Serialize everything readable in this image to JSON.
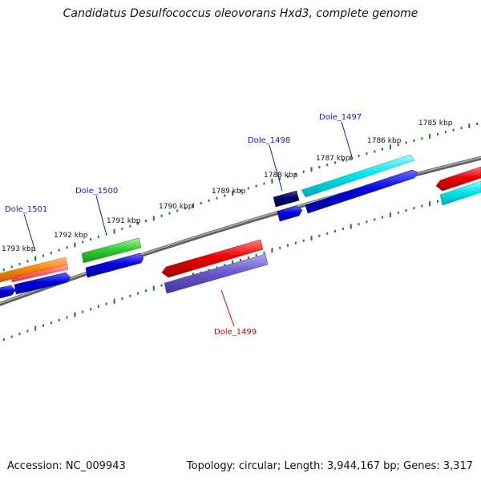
{
  "title": "Candidatus Desulfococcus oleovorans Hxd3, complete genome",
  "footer": {
    "accession": "Accession: NC_009943",
    "summary": "Topology: circular; Length: 3,944,167 bp; Genes: 3,317"
  },
  "colors": {
    "backbone": "#808080",
    "tick": "#1e7a1e",
    "label_blue": "#1a1aaa",
    "label_red": "#d40000"
  },
  "kbp_labels": [
    "1785 kbp",
    "1786 kbp",
    "1787 kbp",
    "1788 kbp",
    "1789 kbp",
    "1790 kbp",
    "1791 kbp",
    "1792 kbp",
    "1793 kbp"
  ],
  "gene_labels": [
    {
      "text": "Dole_1497",
      "color": "#1a1aaa"
    },
    {
      "text": "Dole_1498",
      "color": "#1a1aaa"
    },
    {
      "text": "Dole_1500",
      "color": "#1a1aaa"
    },
    {
      "text": "Dole_1501",
      "color": "#1a1aaa"
    },
    {
      "text": "Dole_1499",
      "color": "#d40000"
    }
  ],
  "features": [
    {
      "color": "#00e5ee",
      "name": "cyan-feature-right"
    },
    {
      "color": "#0000dd",
      "name": "blue-feature-right"
    },
    {
      "color": "#000066",
      "name": "navy-feature"
    },
    {
      "color": "#ee0000",
      "name": "red-feature"
    },
    {
      "color": "#6a5acd",
      "name": "purple-feature"
    },
    {
      "color": "#33cc33",
      "name": "green-feature"
    },
    {
      "color": "#ff8800",
      "name": "orange-feature"
    },
    {
      "color": "#ff6666",
      "name": "pink-feature"
    }
  ]
}
